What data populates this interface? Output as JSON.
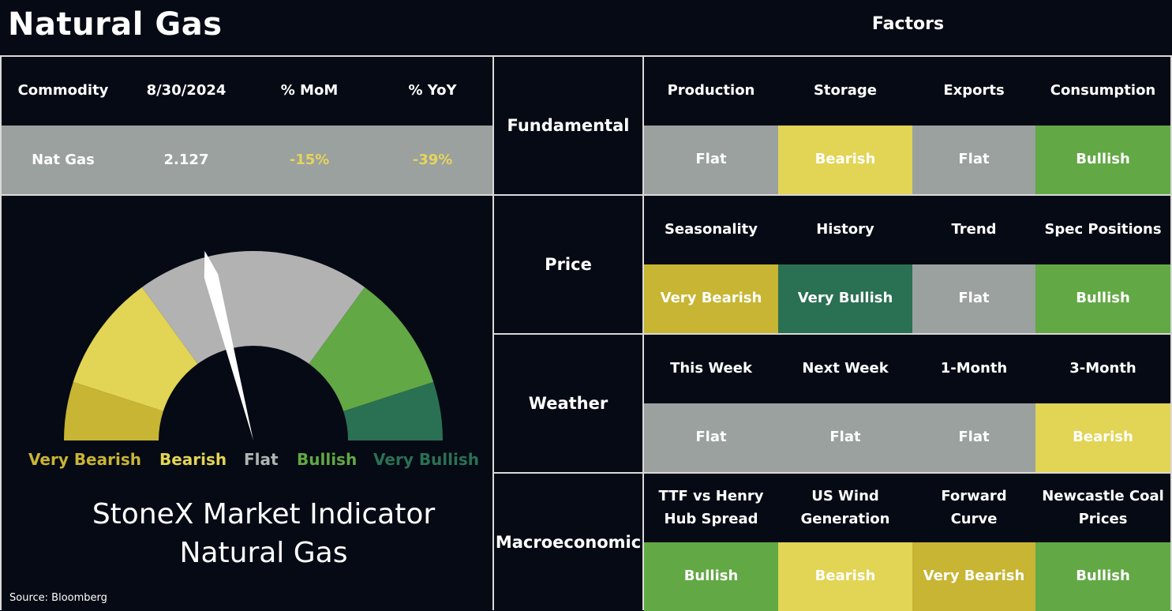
{
  "header": {
    "title": "Natural Gas",
    "factors_title": "Factors"
  },
  "commodity_table": {
    "columns": [
      "Commodity",
      "8/30/2024",
      "% MoM",
      "% YoY"
    ],
    "row": [
      "Nat Gas",
      "2.127",
      "-15%",
      "-39%"
    ],
    "row_colors": [
      "#ffffff",
      "#ffffff",
      "#e6d45a",
      "#e6d45a"
    ]
  },
  "gauge": {
    "labels": [
      {
        "text": "Very Bearish",
        "color": "#c9b535"
      },
      {
        "text": "Bearish",
        "color": "#e2d456"
      },
      {
        "text": "Flat",
        "color": "#b0b5b4"
      },
      {
        "text": "Bullish",
        "color": "#62a845"
      },
      {
        "text": "Very Bullish",
        "color": "#2a7053"
      }
    ],
    "indicator_value": "Flat",
    "indicator_fraction": 0.42
  },
  "indicator": {
    "line1": "StoneX Market Indicator",
    "line2": "Natural Gas"
  },
  "source": "Source: Bloomberg",
  "status_colors": {
    "Very Bearish": "#c7b533",
    "Bearish": "#e2d455",
    "Flat": "#9aa19f",
    "Bullish": "#62a845",
    "Very Bullish": "#2a7053"
  },
  "factors": [
    {
      "category": "Fundamental",
      "items": [
        {
          "name": "Production",
          "value": "Flat"
        },
        {
          "name": "Storage",
          "value": "Bearish"
        },
        {
          "name": "Exports",
          "value": "Flat"
        },
        {
          "name": "Consumption",
          "value": "Bullish"
        }
      ]
    },
    {
      "category": "Price",
      "items": [
        {
          "name": "Seasonality",
          "value": "Very Bearish"
        },
        {
          "name": "History",
          "value": "Very Bullish"
        },
        {
          "name": "Trend",
          "value": "Flat"
        },
        {
          "name": "Spec Positions",
          "value": "Bullish"
        }
      ]
    },
    {
      "category": "Weather",
      "items": [
        {
          "name": "This Week",
          "value": "Flat"
        },
        {
          "name": "Next Week",
          "value": "Flat"
        },
        {
          "name": "1-Month",
          "value": "Flat"
        },
        {
          "name": "3-Month",
          "value": "Bearish"
        }
      ]
    },
    {
      "category": "Macroeconomic",
      "items": [
        {
          "name": "TTF vs Henry Hub Spread",
          "value": "Bullish"
        },
        {
          "name": "US Wind Generation",
          "value": "Bearish"
        },
        {
          "name": "Forward Curve",
          "value": "Very Bearish"
        },
        {
          "name": "Newcastle Coal Prices",
          "value": "Bullish"
        }
      ]
    }
  ]
}
